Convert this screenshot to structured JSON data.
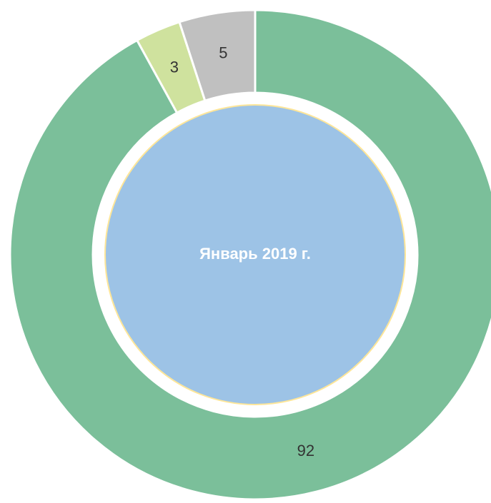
{
  "chart_data": {
    "type": "donut",
    "center_label": "Январь 2019 г.",
    "values": [
      92,
      3,
      5
    ],
    "colors": [
      "#7bbf9a",
      "#cfe29e",
      "#c0c0c0"
    ],
    "center_color": "#9dc3e6"
  }
}
